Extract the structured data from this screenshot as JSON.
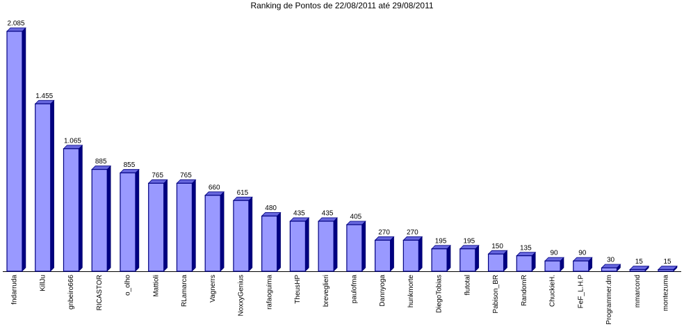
{
  "chart_data": {
    "type": "bar",
    "title": "Ranking de Pontos de 22/08/2011 até 29/08/2011",
    "categories": [
      "fndarruda",
      "KillJu",
      "gnbeiro666",
      "RICASTOR",
      "o_olho",
      "Mattioli",
      "RLamarca",
      "Vagnerrs",
      "NoxxyGenius",
      "rafaoguima",
      "TheusHP",
      "breveglieri",
      "paulofma",
      "Dannyoga",
      "hunkmorte",
      "DiegoTobias",
      "flutotal",
      "Pabison_BR",
      "RandomR",
      "ChuckieH.",
      "FeF_L.H.P",
      "Programmer.dm",
      "mmarcond",
      "montezuma"
    ],
    "values": [
      2085,
      1455,
      1065,
      885,
      855,
      765,
      765,
      660,
      615,
      480,
      435,
      435,
      405,
      270,
      270,
      195,
      195,
      150,
      135,
      90,
      90,
      30,
      15,
      15
    ],
    "value_labels": [
      "2.085",
      "1.455",
      "1.065",
      "885",
      "855",
      "765",
      "765",
      "660",
      "615",
      "480",
      "435",
      "435",
      "405",
      "270",
      "270",
      "195",
      "195",
      "150",
      "135",
      "90",
      "90",
      "30",
      "15",
      "15"
    ],
    "color": "#9999ff"
  }
}
